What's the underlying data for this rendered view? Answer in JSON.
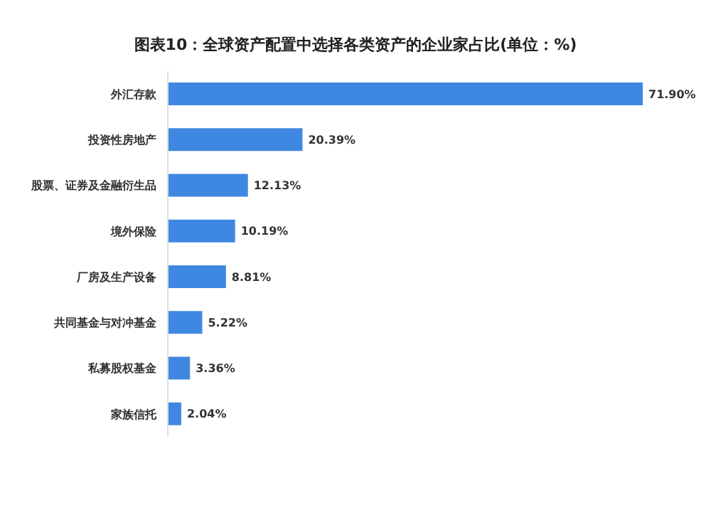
{
  "chart_data": {
    "type": "bar",
    "orientation": "horizontal",
    "title": "图表10：全球资产配置中选择各类资产的企业家占比(单位：%)",
    "categories": [
      "外汇存款",
      "投资性房地产",
      "股票、证券及金融衍生品",
      "境外保险",
      "厂房及生产设备",
      "共同基金与对冲基金",
      "私募股权基金",
      "家族信托"
    ],
    "values": [
      71.9,
      20.39,
      12.13,
      10.19,
      8.81,
      5.22,
      3.36,
      2.04
    ],
    "value_labels": [
      "71.90%",
      "20.39%",
      "12.13%",
      "10.19%",
      "8.81%",
      "5.22%",
      "3.36%",
      "2.04%"
    ],
    "color": "#3f88e2",
    "tick_labels": "y",
    "grid": false,
    "legend": false
  }
}
